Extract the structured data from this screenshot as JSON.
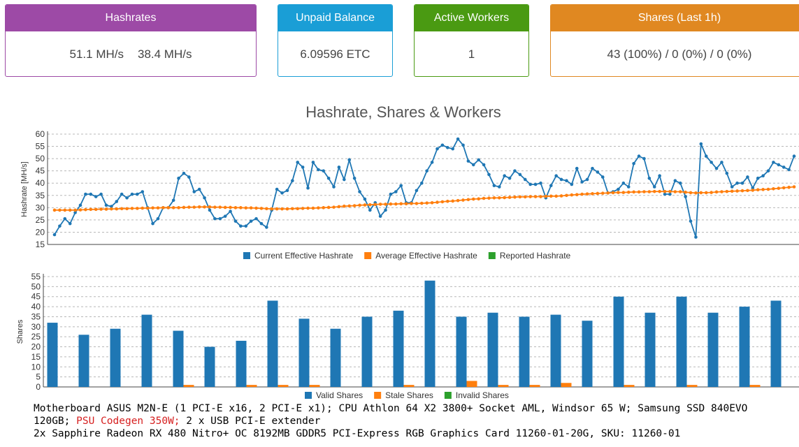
{
  "cards": {
    "hashrates": {
      "title": "Hashrates",
      "value_current": "51.1 MH/s",
      "value_average": "38.4 MH/s"
    },
    "balance": {
      "title": "Unpaid Balance",
      "value": "6.09596 ETC"
    },
    "workers": {
      "title": "Active Workers",
      "value": "1"
    },
    "shares": {
      "title": "Shares (Last 1h)",
      "value": "43 (100%) / 0 (0%) / 0 (0%)"
    }
  },
  "colors": {
    "purple": "#9d4aa6",
    "blue": "#1a9ed6",
    "green": "#4a9a12",
    "orange": "#e08821",
    "series_blue": "#1f77b4",
    "series_orange": "#ff7f0e",
    "series_green": "#2ca02c"
  },
  "chart_data": [
    {
      "type": "line",
      "title": "Hashrate, Shares & Workers",
      "ylabel": "Hashrate [MH/s]",
      "ylim": [
        15,
        60
      ],
      "yticks": [
        15,
        20,
        25,
        30,
        35,
        40,
        45,
        50,
        55,
        60
      ],
      "grid": true,
      "legend": "bottom",
      "series": [
        {
          "name": "Current Effective Hashrate",
          "color": "#1f77b4",
          "values": [
            19,
            22.5,
            25.5,
            23.5,
            28,
            31,
            35.5,
            35.5,
            34.5,
            35.5,
            31,
            30.5,
            32.5,
            35.5,
            34,
            35.5,
            35.5,
            36.5,
            30,
            23.5,
            25.5,
            30,
            30,
            33,
            42,
            44,
            42.5,
            36.5,
            37.5,
            34,
            29,
            25.5,
            25.5,
            26.5,
            28.5,
            24.5,
            22.5,
            22.5,
            24.5,
            25.5,
            23.5,
            22,
            29,
            37.5,
            36,
            37,
            41,
            48.5,
            46.5,
            38,
            48.5,
            45.5,
            45,
            42,
            38.5,
            46.5,
            41.5,
            49.5,
            42,
            36.5,
            33.5,
            29,
            32,
            26.5,
            29,
            35.5,
            36.5,
            39,
            32,
            32,
            37,
            40,
            45,
            48.5,
            54,
            55.5,
            54.5,
            54,
            58,
            55.5,
            49,
            47.5,
            49.5,
            47.5,
            43.5,
            39,
            38.5,
            43,
            42,
            45,
            43.5,
            41.5,
            39.5,
            39.5,
            40,
            34,
            39,
            43,
            41.5,
            41,
            39.5,
            46,
            40.5,
            41.5,
            46,
            44.5,
            42.5,
            36,
            36.5,
            37.5,
            40,
            38.5,
            48,
            51,
            50,
            42,
            38.5,
            43,
            35.5,
            35.5,
            41,
            40,
            34.5,
            24.5,
            18,
            56,
            51,
            48.5,
            46,
            48.5,
            44,
            38.5,
            40,
            40,
            42.5,
            38,
            42,
            43,
            45,
            48.5,
            47.5,
            46.5,
            45.5,
            51
          ]
        },
        {
          "name": "Average Effective Hashrate",
          "color": "#ff7f0e",
          "values": [
            29,
            29,
            29,
            29,
            29,
            29.1,
            29.2,
            29.3,
            29.3,
            29.4,
            29.4,
            29.5,
            29.5,
            29.6,
            29.6,
            29.7,
            29.7,
            29.8,
            29.8,
            29.9,
            29.9,
            30,
            30,
            30,
            30,
            30.1,
            30.2,
            30.2,
            30.3,
            30.3,
            30.3,
            30.2,
            30.2,
            30.1,
            30.1,
            30,
            30,
            29.9,
            29.9,
            29.8,
            29.7,
            29.6,
            29.5,
            29.5,
            29.5,
            29.5,
            29.6,
            29.6,
            29.7,
            29.8,
            29.8,
            29.9,
            30,
            30.1,
            30.2,
            30.4,
            30.6,
            30.7,
            30.8,
            31,
            31.1,
            31.2,
            31.3,
            31.4,
            31.4,
            31.5,
            31.5,
            31.6,
            31.6,
            31.7,
            31.7,
            31.8,
            31.9,
            32,
            32.2,
            32.4,
            32.6,
            32.7,
            32.9,
            33.1,
            33.3,
            33.5,
            33.6,
            33.8,
            33.9,
            34,
            34,
            34.1,
            34.2,
            34.3,
            34.4,
            34.4,
            34.5,
            34.5,
            34.5,
            34.6,
            34.7,
            34.7,
            34.8,
            35,
            35.2,
            35.3,
            35.5,
            35.6,
            35.7,
            35.8,
            35.9,
            36,
            36.1,
            36.2,
            36.2,
            36.3,
            36.4,
            36.4,
            36.5,
            36.5,
            36.6,
            36.6,
            36.6,
            36.6,
            36.5,
            36.5,
            36.3,
            36.1,
            36,
            36.1,
            36.1,
            36.2,
            36.4,
            36.5,
            36.6,
            36.7,
            36.8,
            36.9,
            37,
            37.1,
            37.3,
            37.4,
            37.5,
            37.7,
            37.9,
            38.1,
            38.3,
            38.5
          ]
        },
        {
          "name": "Reported Hashrate",
          "color": "#2ca02c",
          "values": []
        }
      ]
    },
    {
      "type": "bar",
      "ylabel": "Shares",
      "ylim": [
        0,
        55
      ],
      "yticks": [
        0,
        5,
        10,
        15,
        20,
        25,
        30,
        35,
        40,
        45,
        50,
        55
      ],
      "grid": true,
      "legend": "bottom",
      "series": [
        {
          "name": "Valid Shares",
          "color": "#1f77b4",
          "values": [
            32,
            26,
            29,
            36,
            28,
            20,
            23,
            43,
            34,
            29,
            35,
            38,
            53,
            35,
            37,
            35,
            36,
            33,
            45,
            37,
            45,
            37,
            40,
            43
          ]
        },
        {
          "name": "Stale Shares",
          "color": "#ff7f0e",
          "values": [
            0,
            0,
            0,
            0,
            1,
            0,
            1,
            1,
            1,
            0,
            0,
            1,
            0,
            3,
            1,
            1,
            2,
            0,
            1,
            0,
            1,
            0,
            1,
            0
          ]
        },
        {
          "name": "Invalid Shares",
          "color": "#2ca02c",
          "values": [
            0,
            0,
            0,
            0,
            0,
            0,
            0,
            0,
            0,
            0,
            0,
            0,
            0,
            0,
            0,
            0,
            0,
            0,
            0,
            0,
            0,
            0,
            0,
            0
          ]
        }
      ]
    }
  ],
  "footer": {
    "line1": "Motherboard ASUS M2N-E (1 PCI-E x16, 2 PCI-E x1); CPU Athlon 64 X2 3800+ Socket AML, Windsor 65 W; Samsung SSD 840EVO",
    "line2_a": "120GB;",
    "line2_psu": "PSU Codegen 350W;",
    "line2_b": "2 x USB PCI-E extender",
    "line3": "2x Sapphire Radeon RX 480 Nitro+ OC 8192MB GDDR5 PCI-Express RGB Graphics Card 11260-01-20G, SKU: 11260-01"
  }
}
